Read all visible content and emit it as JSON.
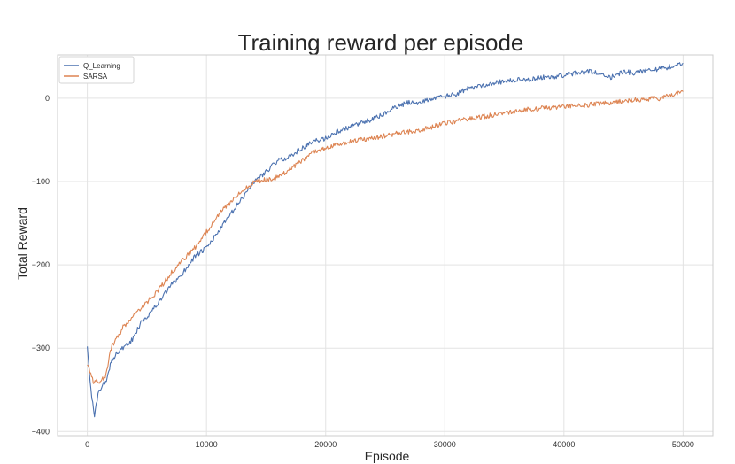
{
  "chart_data": {
    "type": "line",
    "title": "Training reward per episode",
    "xlabel": "Episode",
    "ylabel": "Total Reward",
    "xlim": [
      -2500,
      52500
    ],
    "ylim": [
      -405,
      52
    ],
    "xticks": [
      0,
      10000,
      20000,
      30000,
      40000,
      50000
    ],
    "yticks": [
      -400,
      -300,
      -200,
      -100,
      0
    ],
    "grid": true,
    "legend_position": "top-left",
    "series": [
      {
        "name": "Q_Learning",
        "color": "#4c72b0",
        "x": [
          0,
          300,
          600,
          900,
          1200,
          1600,
          2000,
          2500,
          3000,
          3500,
          4000,
          4500,
          5000,
          6000,
          7000,
          8000,
          9000,
          10000,
          11000,
          12000,
          13000,
          14000,
          15000,
          16000,
          17000,
          18000,
          19000,
          20000,
          21000,
          22000,
          23000,
          24000,
          25000,
          26000,
          27000,
          28000,
          29000,
          30000,
          31000,
          32000,
          33000,
          34000,
          35000,
          36000,
          37000,
          38000,
          39000,
          40000,
          41000,
          42000,
          43000,
          44000,
          45000,
          46000,
          47000,
          48000,
          49000,
          50000
        ],
        "y": [
          -298,
          -350,
          -383,
          -355,
          -345,
          -340,
          -315,
          -305,
          -300,
          -295,
          -285,
          -268,
          -262,
          -245,
          -225,
          -210,
          -190,
          -180,
          -160,
          -140,
          -120,
          -100,
          -88,
          -75,
          -70,
          -60,
          -52,
          -48,
          -40,
          -35,
          -30,
          -25,
          -18,
          -10,
          -5,
          -5,
          0,
          2,
          5,
          12,
          15,
          18,
          20,
          22,
          22,
          25,
          25,
          28,
          30,
          32,
          30,
          25,
          32,
          30,
          35,
          35,
          38,
          42
        ]
      },
      {
        "name": "SARSA",
        "color": "#dd8452",
        "x": [
          0,
          500,
          1000,
          1500,
          2000,
          3000,
          4000,
          5000,
          6000,
          7000,
          8000,
          9000,
          10000,
          11000,
          12000,
          13000,
          14000,
          15000,
          16000,
          17000,
          18000,
          19000,
          20000,
          22000,
          24000,
          26000,
          28000,
          30000,
          32000,
          34000,
          36000,
          38000,
          40000,
          42000,
          44000,
          46000,
          48000,
          50000
        ],
        "y": [
          -320,
          -340,
          -340,
          -335,
          -300,
          -275,
          -260,
          -245,
          -230,
          -210,
          -195,
          -180,
          -160,
          -140,
          -125,
          -110,
          -100,
          -98,
          -95,
          -85,
          -75,
          -65,
          -60,
          -52,
          -48,
          -42,
          -38,
          -30,
          -25,
          -20,
          -15,
          -12,
          -10,
          -8,
          -5,
          -2,
          0,
          8
        ]
      }
    ]
  }
}
